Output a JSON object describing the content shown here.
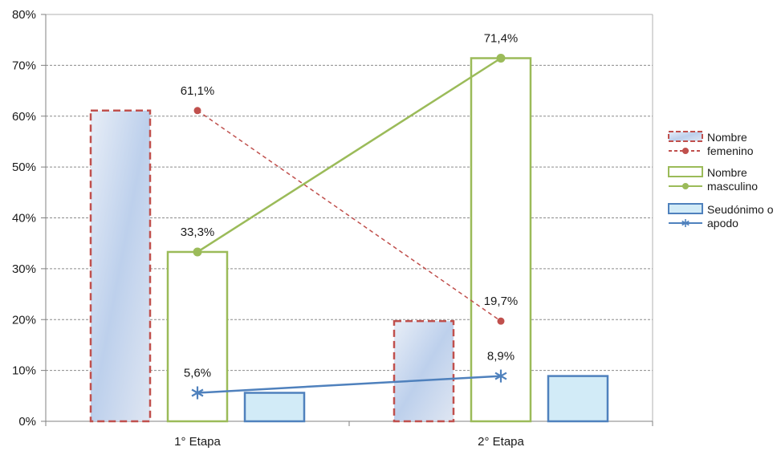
{
  "chart_data": {
    "type": "bar",
    "title": "",
    "xlabel": "",
    "ylabel": "",
    "categories": [
      "1° Etapa",
      "2° Etapa"
    ],
    "ylim": [
      0,
      80
    ],
    "yticks": [
      "0%",
      "10%",
      "20%",
      "30%",
      "40%",
      "50%",
      "60%",
      "70%",
      "80%"
    ],
    "grid": true,
    "legend_position": "right",
    "series": [
      {
        "name": "Nombre femenino",
        "legend_lines": [
          "Nombre",
          "femenino"
        ],
        "values": [
          61.1,
          19.7
        ],
        "labels": [
          "61,1%",
          "19,7%"
        ],
        "bar_style": "dashed-outline-gradient",
        "bar_color": "#c0504d",
        "line_color": "#c0504d",
        "marker": "circle",
        "line_style": "dashed"
      },
      {
        "name": "Nombre masculino",
        "legend_lines": [
          "Nombre",
          "masculino"
        ],
        "values": [
          33.3,
          71.4
        ],
        "labels": [
          "33,3%",
          "71,4%"
        ],
        "bar_style": "outline",
        "bar_color": "#9bbb59",
        "line_color": "#9bbb59",
        "marker": "circle",
        "line_style": "solid"
      },
      {
        "name": "Seudónimo o apodo",
        "legend_lines": [
          "Seudónimo o",
          "apodo"
        ],
        "values": [
          5.6,
          8.9
        ],
        "labels": [
          "5,6%",
          "8,9%"
        ],
        "bar_style": "fill",
        "bar_color": "#4f81bd",
        "bar_fill": "#d2ebf7",
        "line_color": "#4f81bd",
        "marker": "asterisk",
        "line_style": "solid"
      }
    ]
  }
}
